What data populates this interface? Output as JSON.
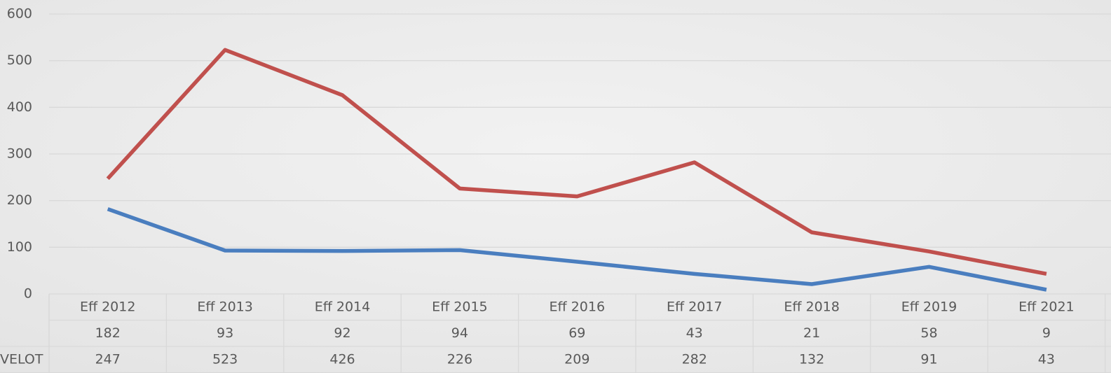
{
  "chart_data": {
    "type": "line",
    "categories": [
      "Eff 2012",
      "Eff 2013",
      "Eff 2014",
      "Eff 2015",
      "Eff 2016",
      "Eff 2017",
      "Eff 2018",
      "Eff 2019",
      "Eff 2021"
    ],
    "series": [
      {
        "color": "#4a7ebf",
        "values": [
          182,
          93,
          92,
          94,
          69,
          43,
          21,
          58,
          9
        ]
      },
      {
        "name": "VELOT",
        "color": "#c0504d",
        "values": [
          247,
          523,
          426,
          226,
          209,
          282,
          132,
          91,
          43
        ]
      }
    ],
    "ylim": [
      0,
      600
    ],
    "yticks": [
      0,
      100,
      200,
      300,
      400,
      500,
      600
    ],
    "grid": true,
    "data_table": true
  }
}
